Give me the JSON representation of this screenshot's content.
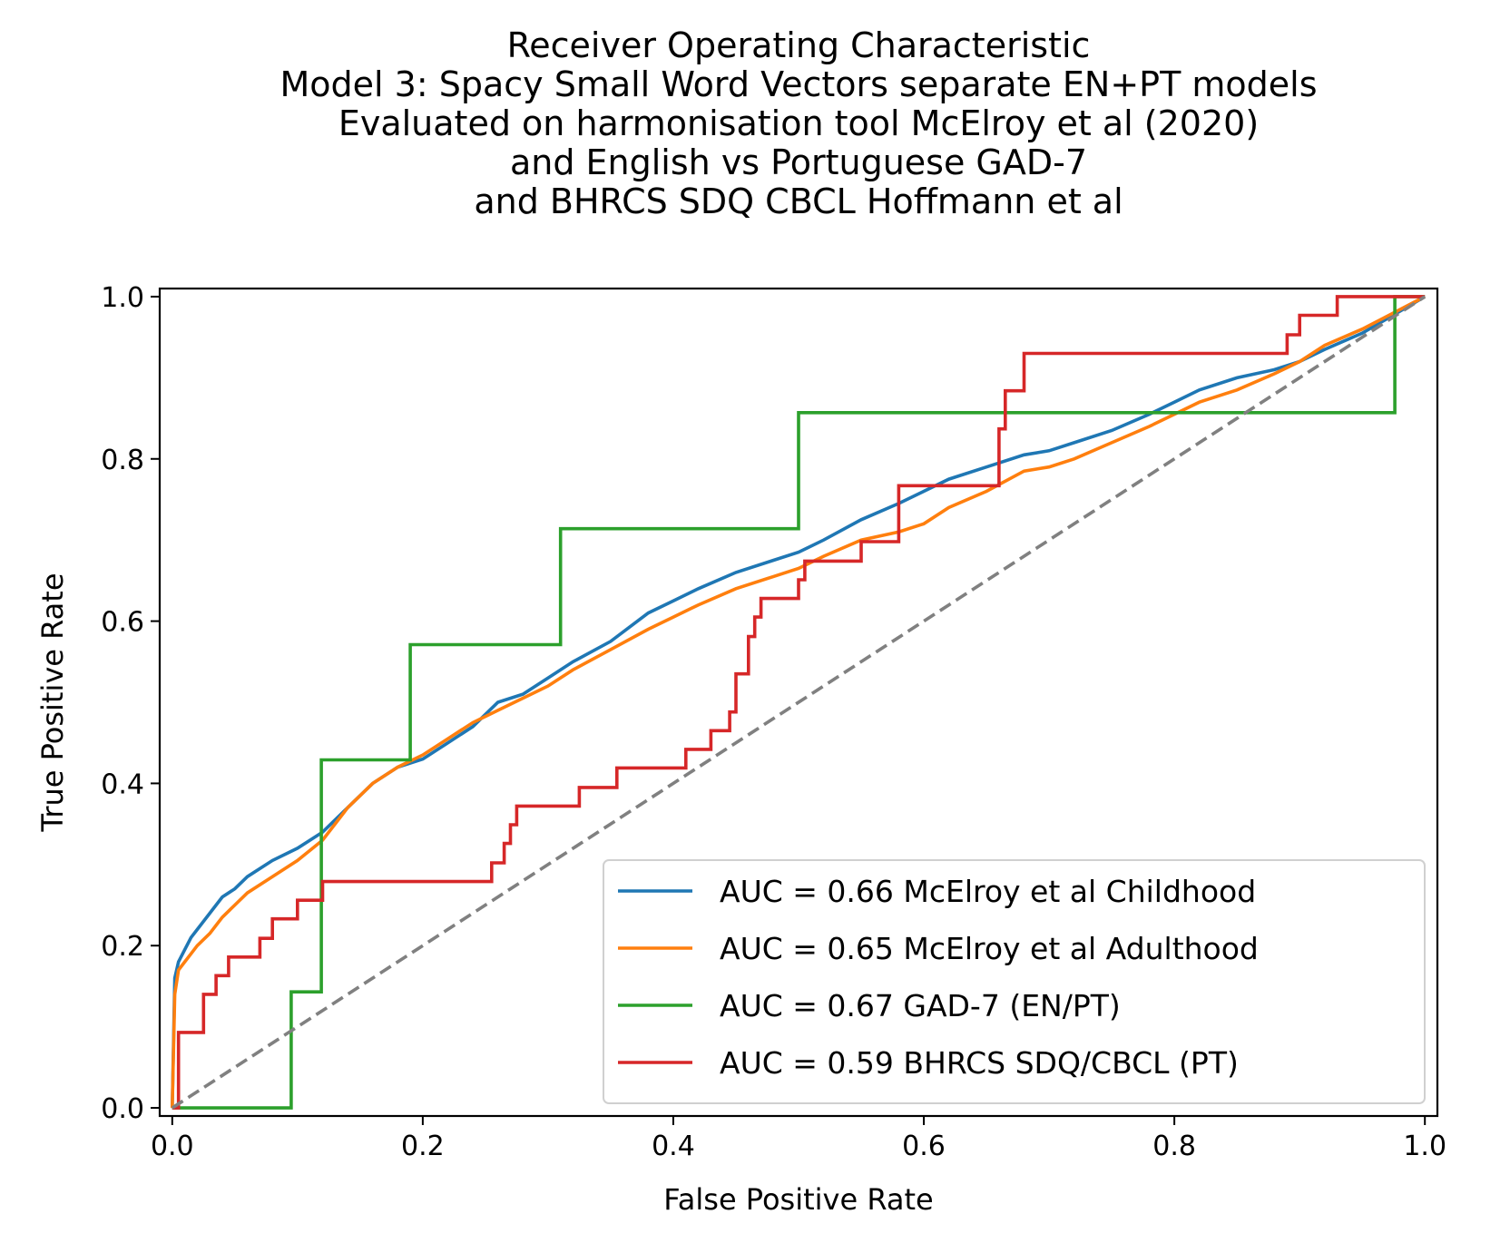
{
  "chart_data": {
    "type": "line",
    "title_lines": [
      "Receiver Operating Characteristic",
      "Model 3: Spacy Small Word Vectors separate EN+PT models",
      "Evaluated on harmonisation tool McElroy et al (2020)",
      "and English vs Portuguese GAD-7",
      "and BHRCS SDQ CBCL Hoffmann et al"
    ],
    "xlabel": "False Positive Rate",
    "ylabel": "True Positive Rate",
    "xlim": [
      -0.01,
      1.01
    ],
    "ylim": [
      -0.01,
      1.01
    ],
    "x_ticks": [
      0.0,
      0.2,
      0.4,
      0.6,
      0.8,
      1.0
    ],
    "x_tick_labels": [
      "0.0",
      "0.2",
      "0.4",
      "0.6",
      "0.8",
      "1.0"
    ],
    "y_ticks": [
      0.0,
      0.2,
      0.4,
      0.6,
      0.8,
      1.0
    ],
    "y_tick_labels": [
      "0.0",
      "0.2",
      "0.4",
      "0.6",
      "0.8",
      "1.0"
    ],
    "grid": false,
    "legend_position": "lower-right",
    "diagonal": {
      "points": [
        [
          0,
          0
        ],
        [
          1,
          1
        ]
      ],
      "color": "#808080",
      "style": "dashed"
    },
    "series": [
      {
        "name": "AUC = 0.66 McElroy et al Childhood",
        "color": "#1f77b4",
        "x": [
          0,
          0.002,
          0.005,
          0.01,
          0.015,
          0.02,
          0.03,
          0.04,
          0.05,
          0.06,
          0.08,
          0.1,
          0.12,
          0.14,
          0.16,
          0.18,
          0.2,
          0.22,
          0.24,
          0.26,
          0.28,
          0.3,
          0.32,
          0.35,
          0.38,
          0.4,
          0.42,
          0.45,
          0.48,
          0.5,
          0.52,
          0.55,
          0.58,
          0.6,
          0.62,
          0.65,
          0.68,
          0.7,
          0.72,
          0.75,
          0.78,
          0.8,
          0.82,
          0.85,
          0.88,
          0.9,
          0.92,
          0.95,
          1.0
        ],
        "y": [
          0,
          0.16,
          0.18,
          0.195,
          0.21,
          0.22,
          0.24,
          0.26,
          0.27,
          0.285,
          0.305,
          0.32,
          0.34,
          0.37,
          0.4,
          0.42,
          0.43,
          0.45,
          0.47,
          0.5,
          0.51,
          0.53,
          0.55,
          0.575,
          0.61,
          0.625,
          0.64,
          0.66,
          0.675,
          0.685,
          0.7,
          0.725,
          0.745,
          0.76,
          0.775,
          0.79,
          0.805,
          0.81,
          0.82,
          0.835,
          0.855,
          0.87,
          0.885,
          0.9,
          0.91,
          0.92,
          0.935,
          0.955,
          1.0
        ]
      },
      {
        "name": "AUC = 0.65 McElroy et al Adulthood",
        "color": "#ff7f0e",
        "x": [
          0,
          0.002,
          0.005,
          0.01,
          0.015,
          0.02,
          0.03,
          0.04,
          0.05,
          0.06,
          0.08,
          0.1,
          0.12,
          0.14,
          0.16,
          0.18,
          0.2,
          0.22,
          0.24,
          0.26,
          0.28,
          0.3,
          0.32,
          0.35,
          0.38,
          0.4,
          0.42,
          0.45,
          0.48,
          0.5,
          0.52,
          0.55,
          0.58,
          0.6,
          0.62,
          0.65,
          0.68,
          0.7,
          0.72,
          0.75,
          0.78,
          0.8,
          0.82,
          0.85,
          0.88,
          0.9,
          0.92,
          0.95,
          1.0
        ],
        "y": [
          0,
          0.14,
          0.17,
          0.18,
          0.19,
          0.2,
          0.215,
          0.235,
          0.25,
          0.265,
          0.285,
          0.305,
          0.33,
          0.37,
          0.4,
          0.42,
          0.435,
          0.455,
          0.475,
          0.49,
          0.505,
          0.52,
          0.54,
          0.565,
          0.59,
          0.605,
          0.62,
          0.64,
          0.655,
          0.665,
          0.68,
          0.7,
          0.71,
          0.72,
          0.74,
          0.76,
          0.785,
          0.79,
          0.8,
          0.82,
          0.84,
          0.855,
          0.87,
          0.885,
          0.905,
          0.92,
          0.94,
          0.96,
          1.0
        ]
      },
      {
        "name": "AUC = 0.67 GAD-7 (EN/PT)",
        "color": "#2ca02c",
        "x": [
          0,
          0.095,
          0.095,
          0.119,
          0.119,
          0.19,
          0.19,
          0.31,
          0.31,
          0.5,
          0.5,
          0.976,
          0.976,
          1.0
        ],
        "y": [
          0,
          0,
          0.143,
          0.143,
          0.429,
          0.429,
          0.571,
          0.571,
          0.714,
          0.714,
          0.857,
          0.857,
          1.0,
          1.0
        ]
      },
      {
        "name": "AUC = 0.59 BHRCS SDQ/CBCL (PT)",
        "color": "#d62728",
        "x": [
          0,
          0.005,
          0.005,
          0.025,
          0.025,
          0.035,
          0.035,
          0.045,
          0.045,
          0.07,
          0.07,
          0.08,
          0.08,
          0.1,
          0.1,
          0.11,
          0.11,
          0.12,
          0.12,
          0.15,
          0.15,
          0.255,
          0.255,
          0.265,
          0.265,
          0.27,
          0.27,
          0.275,
          0.275,
          0.325,
          0.325,
          0.355,
          0.355,
          0.41,
          0.41,
          0.43,
          0.43,
          0.445,
          0.445,
          0.45,
          0.45,
          0.46,
          0.46,
          0.465,
          0.465,
          0.47,
          0.47,
          0.5,
          0.5,
          0.505,
          0.505,
          0.55,
          0.55,
          0.58,
          0.58,
          0.66,
          0.66,
          0.665,
          0.665,
          0.68,
          0.68,
          0.89,
          0.89,
          0.9,
          0.9,
          0.93,
          0.93,
          0.96,
          0.96,
          1.0
        ],
        "y": [
          0,
          0,
          0.093,
          0.093,
          0.14,
          0.14,
          0.163,
          0.163,
          0.186,
          0.186,
          0.209,
          0.209,
          0.233,
          0.233,
          0.256,
          0.256,
          0.256,
          0.256,
          0.279,
          0.279,
          0.279,
          0.279,
          0.302,
          0.302,
          0.326,
          0.326,
          0.349,
          0.349,
          0.372,
          0.372,
          0.395,
          0.395,
          0.419,
          0.419,
          0.442,
          0.442,
          0.465,
          0.465,
          0.488,
          0.488,
          0.535,
          0.535,
          0.581,
          0.581,
          0.605,
          0.605,
          0.628,
          0.628,
          0.651,
          0.651,
          0.674,
          0.674,
          0.698,
          0.698,
          0.767,
          0.767,
          0.837,
          0.837,
          0.884,
          0.884,
          0.93,
          0.93,
          0.953,
          0.953,
          0.977,
          0.977,
          1.0,
          1.0,
          1.0,
          1.0
        ]
      }
    ]
  }
}
